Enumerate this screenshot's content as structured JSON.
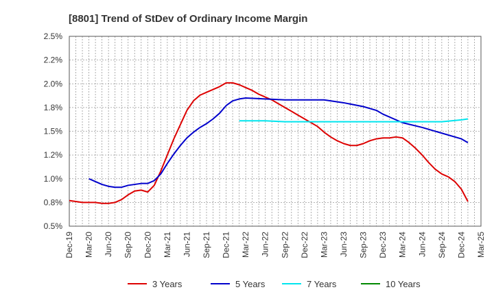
{
  "chart_data": {
    "type": "line",
    "title": "[8801]  Trend of StDev of Ordinary Income Margin",
    "xlabel": "",
    "ylabel": "",
    "grid": true,
    "legend_position": "bottom",
    "x_ticks": [
      "Dec-19",
      "Mar-20",
      "Jun-20",
      "Sep-20",
      "Dec-20",
      "Mar-21",
      "Jun-21",
      "Sep-21",
      "Dec-21",
      "Mar-22",
      "Jun-22",
      "Sep-22",
      "Dec-22",
      "Mar-23",
      "Jun-23",
      "Sep-23",
      "Dec-23",
      "Mar-24",
      "Jun-24",
      "Sep-24",
      "Dec-24",
      "Mar-25"
    ],
    "y_ticks": [
      0.5,
      0.75,
      1.0,
      1.25,
      1.5,
      1.75,
      2.0,
      2.25,
      2.5
    ],
    "y_tick_labels": [
      "0.5%",
      "0.8%",
      "1.0%",
      "1.2%",
      "1.5%",
      "1.8%",
      "2.0%",
      "2.2%",
      "2.5%"
    ],
    "ylim": [
      0.5,
      2.5
    ],
    "series": [
      {
        "name": "3 Years",
        "color": "#dd0000",
        "points": [
          [
            "Dec-19",
            0.77
          ],
          [
            "Jan-20",
            0.76
          ],
          [
            "Feb-20",
            0.75
          ],
          [
            "Mar-20",
            0.75
          ],
          [
            "Apr-20",
            0.75
          ],
          [
            "May-20",
            0.74
          ],
          [
            "Jun-20",
            0.74
          ],
          [
            "Jul-20",
            0.75
          ],
          [
            "Aug-20",
            0.78
          ],
          [
            "Sep-20",
            0.83
          ],
          [
            "Oct-20",
            0.87
          ],
          [
            "Nov-20",
            0.88
          ],
          [
            "Dec-20",
            0.86
          ],
          [
            "Jan-21",
            0.93
          ],
          [
            "Feb-21",
            1.08
          ],
          [
            "Mar-21",
            1.25
          ],
          [
            "Apr-21",
            1.42
          ],
          [
            "May-21",
            1.57
          ],
          [
            "Jun-21",
            1.72
          ],
          [
            "Jul-21",
            1.82
          ],
          [
            "Aug-21",
            1.88
          ],
          [
            "Sep-21",
            1.91
          ],
          [
            "Oct-21",
            1.94
          ],
          [
            "Nov-21",
            1.97
          ],
          [
            "Dec-21",
            2.01
          ],
          [
            "Jan-22",
            2.01
          ],
          [
            "Feb-22",
            1.99
          ],
          [
            "Mar-22",
            1.96
          ],
          [
            "Apr-22",
            1.93
          ],
          [
            "May-22",
            1.89
          ],
          [
            "Jun-22",
            1.86
          ],
          [
            "Jul-22",
            1.83
          ],
          [
            "Aug-22",
            1.79
          ],
          [
            "Sep-22",
            1.75
          ],
          [
            "Oct-22",
            1.71
          ],
          [
            "Nov-22",
            1.67
          ],
          [
            "Dec-22",
            1.63
          ],
          [
            "Jan-23",
            1.59
          ],
          [
            "Feb-23",
            1.55
          ],
          [
            "Mar-23",
            1.49
          ],
          [
            "Apr-23",
            1.44
          ],
          [
            "May-23",
            1.4
          ],
          [
            "Jun-23",
            1.37
          ],
          [
            "Jul-23",
            1.35
          ],
          [
            "Aug-23",
            1.35
          ],
          [
            "Sep-23",
            1.37
          ],
          [
            "Oct-23",
            1.4
          ],
          [
            "Nov-23",
            1.42
          ],
          [
            "Dec-23",
            1.43
          ],
          [
            "Jan-24",
            1.43
          ],
          [
            "Feb-24",
            1.44
          ],
          [
            "Mar-24",
            1.43
          ],
          [
            "Apr-24",
            1.38
          ],
          [
            "May-24",
            1.32
          ],
          [
            "Jun-24",
            1.25
          ],
          [
            "Jul-24",
            1.17
          ],
          [
            "Aug-24",
            1.1
          ],
          [
            "Sep-24",
            1.05
          ],
          [
            "Oct-24",
            1.02
          ],
          [
            "Nov-24",
            0.97
          ],
          [
            "Dec-24",
            0.89
          ],
          [
            "Jan-25",
            0.76
          ]
        ]
      },
      {
        "name": "5 Years",
        "color": "#0000cc",
        "points": [
          [
            "Mar-20",
            1.0
          ],
          [
            "Apr-20",
            0.97
          ],
          [
            "May-20",
            0.94
          ],
          [
            "Jun-20",
            0.92
          ],
          [
            "Jul-20",
            0.91
          ],
          [
            "Aug-20",
            0.91
          ],
          [
            "Sep-20",
            0.93
          ],
          [
            "Oct-20",
            0.94
          ],
          [
            "Nov-20",
            0.95
          ],
          [
            "Dec-20",
            0.95
          ],
          [
            "Jan-21",
            0.98
          ],
          [
            "Feb-21",
            1.05
          ],
          [
            "Mar-21",
            1.16
          ],
          [
            "Apr-21",
            1.26
          ],
          [
            "May-21",
            1.35
          ],
          [
            "Jun-21",
            1.43
          ],
          [
            "Jul-21",
            1.49
          ],
          [
            "Aug-21",
            1.54
          ],
          [
            "Sep-21",
            1.58
          ],
          [
            "Oct-21",
            1.63
          ],
          [
            "Nov-21",
            1.69
          ],
          [
            "Dec-21",
            1.77
          ],
          [
            "Jan-22",
            1.82
          ],
          [
            "Feb-22",
            1.84
          ],
          [
            "Mar-22",
            1.85
          ],
          [
            "Jun-22",
            1.84
          ],
          [
            "Sep-22",
            1.83
          ],
          [
            "Dec-22",
            1.83
          ],
          [
            "Mar-23",
            1.83
          ],
          [
            "Jun-23",
            1.8
          ],
          [
            "Sep-23",
            1.76
          ],
          [
            "Nov-23",
            1.72
          ],
          [
            "Dec-23",
            1.68
          ],
          [
            "Feb-24",
            1.62
          ],
          [
            "Mar-24",
            1.59
          ],
          [
            "Jun-24",
            1.54
          ],
          [
            "Sep-24",
            1.48
          ],
          [
            "Dec-24",
            1.42
          ],
          [
            "Jan-25",
            1.38
          ]
        ]
      },
      {
        "name": "7 Years",
        "color": "#00e5ee",
        "points": [
          [
            "Feb-22",
            1.61
          ],
          [
            "Jun-22",
            1.61
          ],
          [
            "Sep-22",
            1.6
          ],
          [
            "Dec-22",
            1.6
          ],
          [
            "Mar-23",
            1.6
          ],
          [
            "Jun-23",
            1.6
          ],
          [
            "Sep-23",
            1.6
          ],
          [
            "Dec-23",
            1.6
          ],
          [
            "Mar-24",
            1.6
          ],
          [
            "Jun-24",
            1.6
          ],
          [
            "Sep-24",
            1.6
          ],
          [
            "Dec-24",
            1.62
          ],
          [
            "Jan-25",
            1.63
          ]
        ]
      },
      {
        "name": "10 Years",
        "color": "#008800",
        "points": []
      }
    ]
  }
}
